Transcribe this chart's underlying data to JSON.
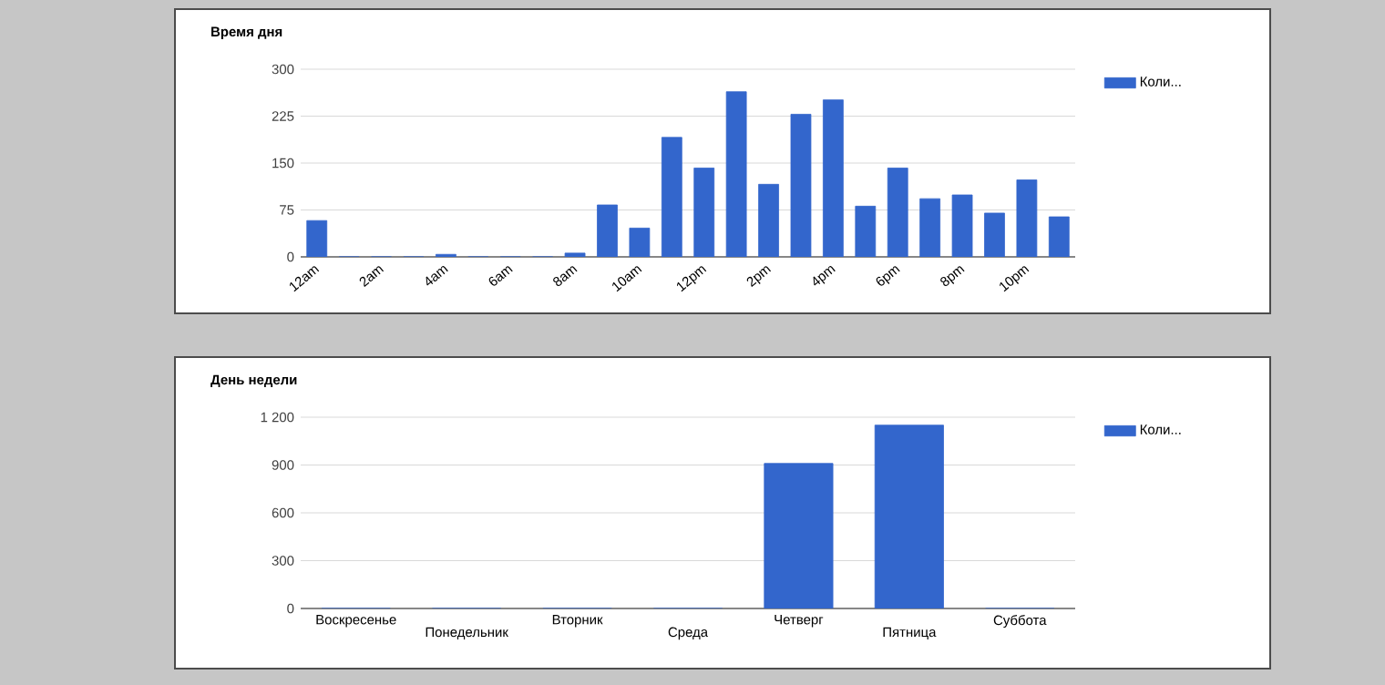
{
  "chart_data": [
    {
      "type": "bar",
      "title": "Время дня",
      "categories": [
        "12am",
        null,
        "2am",
        null,
        "4am",
        null,
        "6am",
        null,
        "8am",
        null,
        "10am",
        null,
        "12pm",
        null,
        "2pm",
        null,
        "4pm",
        null,
        "6pm",
        null,
        "8pm",
        null,
        "10pm",
        null
      ],
      "series": [
        {
          "name": "Коли...",
          "color": "#3366cc",
          "values": [
            58,
            0,
            0,
            0,
            4,
            0,
            0,
            0,
            6,
            83,
            46,
            191,
            142,
            264,
            116,
            228,
            251,
            81,
            142,
            93,
            99,
            70,
            123,
            64
          ]
        }
      ],
      "ylim": [
        0,
        300
      ],
      "yticks": [
        0,
        75,
        150,
        225,
        300
      ],
      "grid": "y",
      "legend": "top right"
    },
    {
      "type": "bar",
      "title": "День недели",
      "categories": [
        "Воскресенье",
        "Понедельник",
        "Вторник",
        "Среда",
        "Четверг",
        "Пятница",
        "Суббота"
      ],
      "series": [
        {
          "name": "Коли...",
          "color": "#3366cc",
          "values": [
            0,
            0,
            0,
            0,
            910,
            1150,
            0
          ]
        }
      ],
      "ylim": [
        0,
        1200
      ],
      "yticks": [
        0,
        300,
        600,
        900,
        {
          "value": 1200,
          "label": "1 200"
        }
      ],
      "grid": "y",
      "legend": "top right"
    }
  ]
}
